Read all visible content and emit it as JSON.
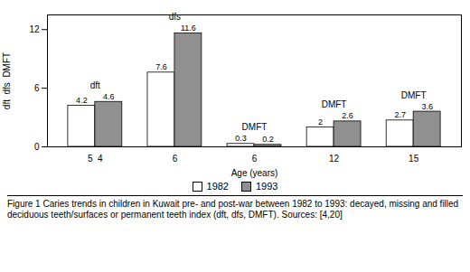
{
  "chart_data": {
    "type": "bar",
    "categories": [
      "5  4",
      "6",
      "6",
      "12",
      "15"
    ],
    "series": [
      {
        "name": "1982",
        "color": "#ffffff",
        "values": [
          4.2,
          7.6,
          0.3,
          2.0,
          2.7
        ]
      },
      {
        "name": "1993",
        "color": "#909090",
        "values": [
          4.6,
          11.6,
          0.2,
          2.6,
          3.6
        ]
      }
    ],
    "annotations": [
      "dft",
      "dfs",
      "DMFT",
      "DMFT",
      "DMFT"
    ],
    "xlabel": "Age (years)",
    "ylabel": "dft  dfs  DMFT",
    "ylim": [
      0,
      13.5
    ],
    "yticks": [
      0,
      6,
      12
    ],
    "data_labels": true,
    "legend": "bottom",
    "grid": false,
    "caption": "Figure 1 Caries trends in children in Kuwait pre- and post-war between 1982 to 1993: decayed, missing and filled deciduous teeth/surfaces or permanent teeth index (dft, dfs, DMFT). Sources: [4,20]"
  }
}
